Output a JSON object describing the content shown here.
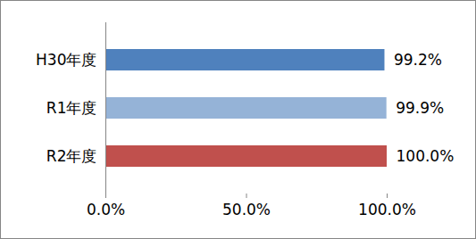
{
  "chart_data": {
    "type": "bar",
    "orientation": "horizontal",
    "categories": [
      "H30年度",
      "R1年度",
      "R2年度"
    ],
    "values": [
      99.2,
      99.9,
      100.0
    ],
    "value_labels": [
      "99.2%",
      "99.9%",
      "100.0%"
    ],
    "colors": [
      "#4F81BD",
      "#95B3D7",
      "#C0504D"
    ],
    "xlim": [
      0,
      100
    ],
    "xticks": [
      {
        "value": 0,
        "label": "0.0%"
      },
      {
        "value": 50,
        "label": "50.0%"
      },
      {
        "value": 100,
        "label": "100.0%"
      }
    ],
    "grid": false,
    "data_labels": true
  }
}
